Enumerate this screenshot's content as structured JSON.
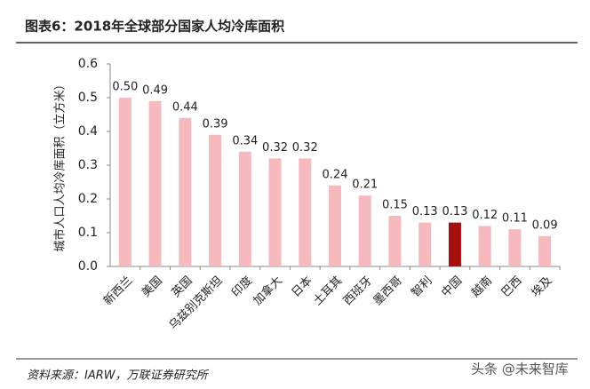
{
  "chart_data": {
    "type": "bar",
    "title": "图表6：2018年全球部分国家人均冷库面积",
    "y_label": "城市人口人均冷库面积（立方米）",
    "categories": [
      "新西兰",
      "美国",
      "英国",
      "乌兹别克斯坦",
      "印度",
      "加拿大",
      "日本",
      "土耳其",
      "西班牙",
      "墨西哥",
      "智利",
      "中国",
      "越南",
      "巴西",
      "埃及"
    ],
    "values": [
      0.5,
      0.49,
      0.44,
      0.39,
      0.34,
      0.32,
      0.32,
      0.24,
      0.21,
      0.15,
      0.13,
      0.13,
      0.12,
      0.11,
      0.09
    ],
    "value_labels": [
      "0.50",
      "0.49",
      "0.44",
      "0.39",
      "0.34",
      "0.32",
      "0.32",
      "0.24",
      "0.21",
      "0.15",
      "0.13",
      "0.13",
      "0.12",
      "0.11",
      "0.09"
    ],
    "colors": [
      "#f6b9bd",
      "#f6b9bd",
      "#f6b9bd",
      "#f6b9bd",
      "#f6b9bd",
      "#f6b9bd",
      "#f6b9bd",
      "#f6b9bd",
      "#f6b9bd",
      "#f6b9bd",
      "#f6b9bd",
      "#a50f0f",
      "#f6b9bd",
      "#f6b9bd",
      "#f6b9bd"
    ],
    "ylim": [
      0,
      0.6
    ],
    "yticks": [
      {
        "value": 0,
        "label": "0.0"
      },
      0.1,
      0.2,
      0.3,
      0.4,
      0.5,
      0.6
    ],
    "grid": false,
    "source": "资料来源：IARW，万联证券研究所",
    "watermark": "头条 @未来智库"
  }
}
